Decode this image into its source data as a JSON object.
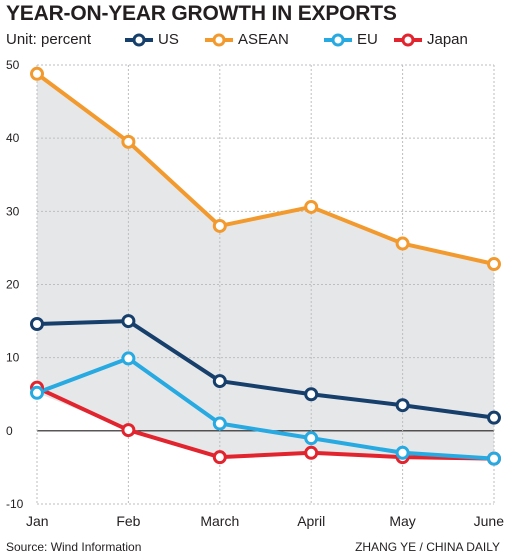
{
  "title": "YEAR-ON-YEAR GROWTH IN EXPORTS",
  "unit_label": "Unit: percent",
  "source": "Source: Wind Information",
  "credit": "ZHANG YE / CHINA DAILY",
  "chart_data": {
    "type": "line",
    "title": "YEAR-ON-YEAR GROWTH IN EXPORTS",
    "ylabel": "",
    "xlabel": "",
    "categories": [
      "Jan",
      "Feb",
      "March",
      "April",
      "May",
      "June"
    ],
    "ylim": [
      -10,
      50
    ],
    "yticks": [
      -10,
      0,
      10,
      20,
      30,
      40,
      50
    ],
    "grid": true,
    "legend": "top",
    "series": [
      {
        "name": "US",
        "color": "#173f6b",
        "values": [
          14.6,
          15.0,
          6.8,
          5.0,
          3.5,
          1.8
        ]
      },
      {
        "name": "ASEAN",
        "color": "#f29a2e",
        "values": [
          48.8,
          39.5,
          28.0,
          30.6,
          25.6,
          22.8
        ]
      },
      {
        "name": "EU",
        "color": "#27a9e1",
        "values": [
          5.2,
          9.9,
          1.0,
          -1.0,
          -3.0,
          -3.8
        ]
      },
      {
        "name": "Japan",
        "color": "#e2242e",
        "values": [
          5.9,
          0.1,
          -3.6,
          -3.0,
          -3.6,
          -3.8
        ]
      }
    ]
  }
}
